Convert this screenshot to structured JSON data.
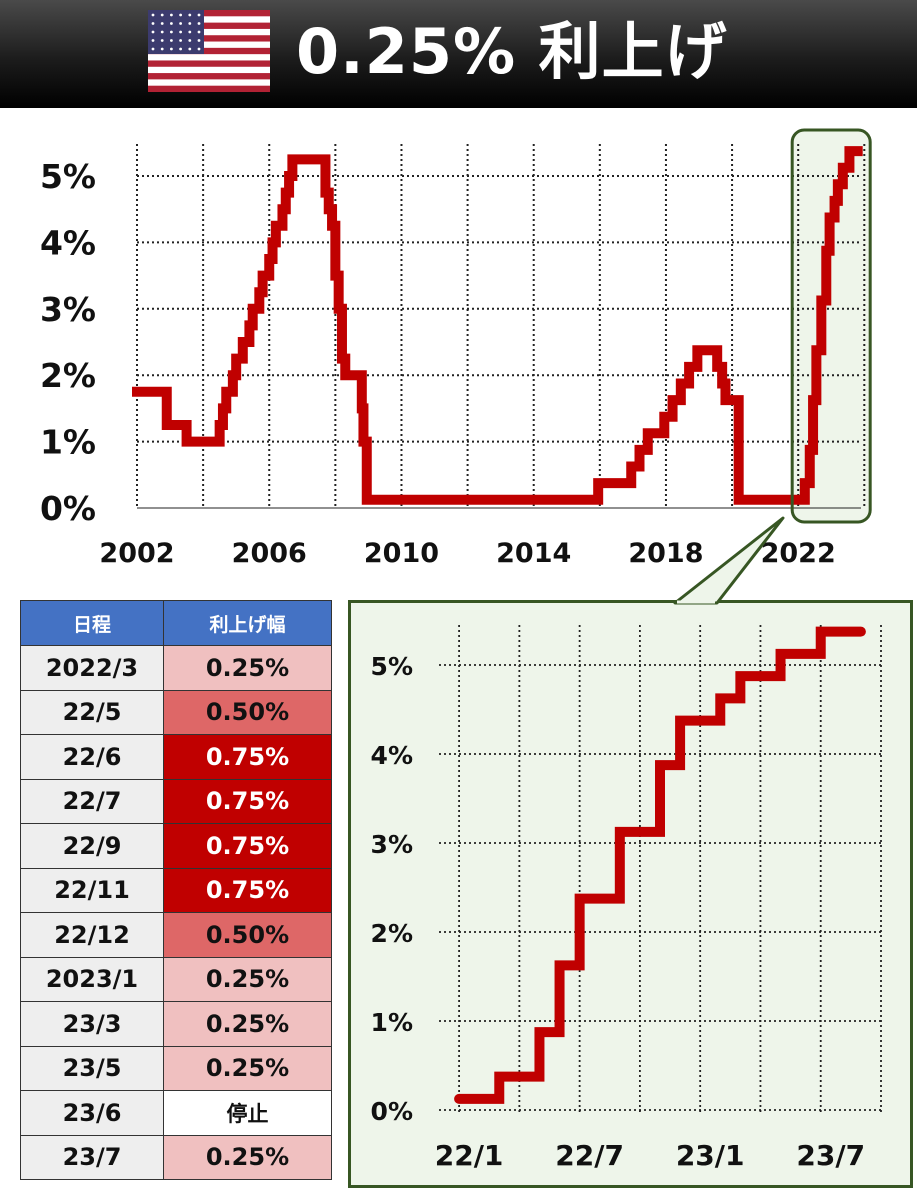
{
  "header": {
    "title": "0.25% 利上げ",
    "flag_icon": "us-flag-icon",
    "background_color": "#000000"
  },
  "colors": {
    "line": "#c00000",
    "table_header": "#4472c4",
    "hike_025": "#f0c0c0",
    "hike_050": "#de6767",
    "hike_075": "#c00000",
    "pause": "#ffffff",
    "highlight_border": "#375623",
    "highlight_fill": "#eef5ea"
  },
  "chart_data": [
    {
      "type": "line",
      "title": "",
      "xlabel": "",
      "ylabel": "",
      "x_ticks": [
        "2002",
        "2006",
        "2010",
        "2014",
        "2018",
        "2022"
      ],
      "y_ticks": [
        "0%",
        "1%",
        "2%",
        "3%",
        "4%",
        "5%"
      ],
      "xlim": [
        2002,
        2023.9
      ],
      "ylim": [
        0,
        5.5
      ],
      "grid": true,
      "highlight_range": [
        2022.0,
        2023.9
      ],
      "series": [
        {
          "values": [
            [
              2002.0,
              1.75
            ],
            [
              2002.9,
              1.25
            ],
            [
              2003.5,
              1.0
            ],
            [
              2004.5,
              1.25
            ],
            [
              2004.6,
              1.5
            ],
            [
              2004.7,
              1.75
            ],
            [
              2004.9,
              2.0
            ],
            [
              2005.0,
              2.25
            ],
            [
              2005.2,
              2.5
            ],
            [
              2005.4,
              2.75
            ],
            [
              2005.5,
              3.0
            ],
            [
              2005.7,
              3.25
            ],
            [
              2005.8,
              3.5
            ],
            [
              2006.0,
              3.75
            ],
            [
              2006.1,
              4.0
            ],
            [
              2006.2,
              4.25
            ],
            [
              2006.4,
              4.5
            ],
            [
              2006.5,
              4.75
            ],
            [
              2006.6,
              5.0
            ],
            [
              2006.7,
              5.25
            ],
            [
              2007.7,
              4.75
            ],
            [
              2007.8,
              4.5
            ],
            [
              2007.9,
              4.25
            ],
            [
              2008.0,
              3.5
            ],
            [
              2008.1,
              3.0
            ],
            [
              2008.2,
              2.25
            ],
            [
              2008.3,
              2.0
            ],
            [
              2008.8,
              1.5
            ],
            [
              2008.85,
              1.0
            ],
            [
              2008.95,
              0.125
            ],
            [
              2015.95,
              0.375
            ],
            [
              2016.95,
              0.625
            ],
            [
              2017.2,
              0.875
            ],
            [
              2017.45,
              1.125
            ],
            [
              2017.95,
              1.375
            ],
            [
              2018.2,
              1.625
            ],
            [
              2018.45,
              1.875
            ],
            [
              2018.7,
              2.125
            ],
            [
              2018.95,
              2.375
            ],
            [
              2019.55,
              2.125
            ],
            [
              2019.7,
              1.875
            ],
            [
              2019.8,
              1.625
            ],
            [
              2020.2,
              0.125
            ],
            [
              2022.2,
              0.375
            ],
            [
              2022.35,
              0.875
            ],
            [
              2022.45,
              1.625
            ],
            [
              2022.55,
              2.375
            ],
            [
              2022.7,
              3.125
            ],
            [
              2022.85,
              3.875
            ],
            [
              2022.95,
              4.375
            ],
            [
              2023.1,
              4.625
            ],
            [
              2023.2,
              4.875
            ],
            [
              2023.35,
              5.125
            ],
            [
              2023.55,
              5.375
            ],
            [
              2023.8,
              5.375
            ]
          ]
        }
      ]
    },
    {
      "type": "line",
      "title": "",
      "xlabel": "",
      "ylabel": "",
      "x_ticks": [
        "22/1",
        "22/7",
        "23/1",
        "23/7"
      ],
      "y_ticks": [
        "0%",
        "1%",
        "2%",
        "3%",
        "4%",
        "5%"
      ],
      "xlim": [
        "2021-12",
        "2023-10"
      ],
      "ylim": [
        0,
        5.5
      ],
      "grid": true,
      "series": [
        {
          "values": [
            [
              "2022-01",
              0.125
            ],
            [
              "2022-03",
              0.375
            ],
            [
              "2022-05",
              0.875
            ],
            [
              "2022-06",
              1.625
            ],
            [
              "2022-07",
              2.375
            ],
            [
              "2022-09",
              3.125
            ],
            [
              "2022-11",
              3.875
            ],
            [
              "2022-12",
              4.375
            ],
            [
              "2023-02",
              4.625
            ],
            [
              "2023-03",
              4.875
            ],
            [
              "2023-05",
              5.125
            ],
            [
              "2023-07",
              5.375
            ],
            [
              "2023-09",
              5.375
            ]
          ]
        }
      ]
    },
    {
      "type": "table",
      "columns": [
        "日程",
        "利上げ幅"
      ],
      "rows": [
        {
          "date": "2022/3",
          "hike": "0.25%",
          "level": "025"
        },
        {
          "date": "22/5",
          "hike": "0.50%",
          "level": "050"
        },
        {
          "date": "22/6",
          "hike": "0.75%",
          "level": "075"
        },
        {
          "date": "22/7",
          "hike": "0.75%",
          "level": "075"
        },
        {
          "date": "22/9",
          "hike": "0.75%",
          "level": "075"
        },
        {
          "date": "22/11",
          "hike": "0.75%",
          "level": "075"
        },
        {
          "date": "22/12",
          "hike": "0.50%",
          "level": "050"
        },
        {
          "date": "2023/1",
          "hike": "0.25%",
          "level": "025"
        },
        {
          "date": "23/3",
          "hike": "0.25%",
          "level": "025"
        },
        {
          "date": "23/5",
          "hike": "0.25%",
          "level": "025"
        },
        {
          "date": "23/6",
          "hike": "停止",
          "level": "pause"
        },
        {
          "date": "23/7",
          "hike": "0.25%",
          "level": "025"
        }
      ]
    }
  ]
}
